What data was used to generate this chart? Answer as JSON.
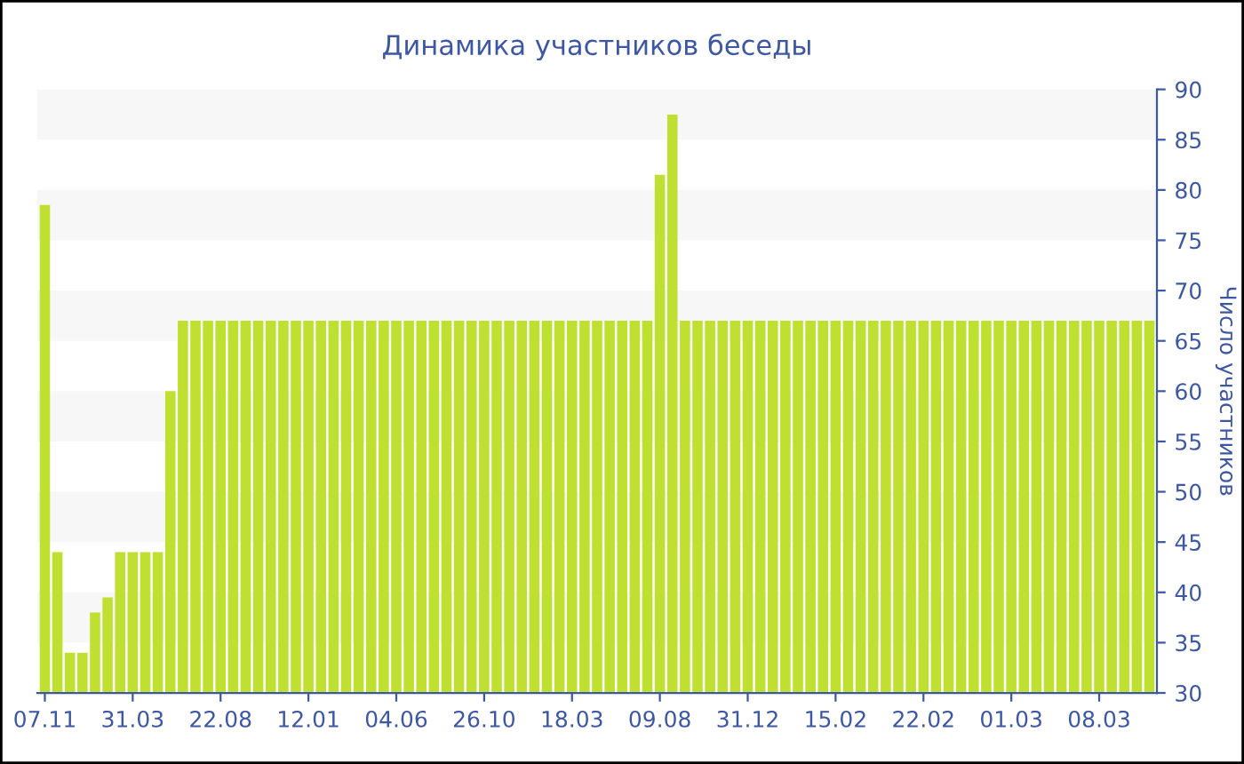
{
  "chart_data": {
    "type": "bar",
    "title": "Динамика участников беседы",
    "ylabel": "Число участников",
    "categories": [
      "07.11",
      null,
      null,
      null,
      null,
      null,
      null,
      "31.03",
      null,
      null,
      null,
      null,
      null,
      null,
      "22.08",
      null,
      null,
      null,
      null,
      null,
      null,
      "12.01",
      null,
      null,
      null,
      null,
      null,
      null,
      "04.06",
      null,
      null,
      null,
      null,
      null,
      null,
      "26.10",
      null,
      null,
      null,
      null,
      null,
      null,
      "18.03",
      null,
      null,
      null,
      null,
      null,
      null,
      "09.08",
      null,
      null,
      null,
      null,
      null,
      null,
      "31.12",
      null,
      null,
      null,
      null,
      null,
      null,
      "15.02",
      null,
      null,
      null,
      null,
      null,
      null,
      "22.02",
      null,
      null,
      null,
      null,
      null,
      null,
      "01.03",
      null,
      null,
      null,
      null,
      null,
      null,
      "08.03",
      null,
      null,
      null,
      null
    ],
    "values": [
      78.5,
      44,
      34,
      34,
      38,
      39.5,
      44,
      44,
      44,
      44,
      60,
      67,
      67,
      67,
      67,
      67,
      67,
      67,
      67,
      67,
      67,
      67,
      67,
      67,
      67,
      67,
      67,
      67,
      67,
      67,
      67,
      67,
      67,
      67,
      67,
      67,
      67,
      67,
      67,
      67,
      67,
      67,
      67,
      67,
      67,
      67,
      67,
      67,
      67,
      81.5,
      87.5,
      67,
      67,
      67,
      67,
      67,
      67,
      67,
      67,
      67,
      67,
      67,
      67,
      67,
      67,
      67,
      67,
      67,
      67,
      67,
      67,
      67,
      67,
      67,
      67,
      67,
      67,
      67,
      67,
      67,
      67,
      67,
      67,
      67,
      67,
      67,
      67,
      67,
      67
    ],
    "color": "#bfe030",
    "ylim": [
      30,
      90
    ],
    "yticks": [
      30,
      35,
      40,
      45,
      50,
      55,
      60,
      65,
      70,
      75,
      80,
      85,
      90
    ],
    "grid": false,
    "bands": [
      {
        "axis": "y",
        "from": 35,
        "to": 40,
        "color": "#f7f7f7"
      },
      {
        "axis": "y",
        "from": 45,
        "to": 50,
        "color": "#f7f7f7"
      },
      {
        "axis": "y",
        "from": 55,
        "to": 60,
        "color": "#f7f7f7"
      },
      {
        "axis": "y",
        "from": 65,
        "to": 70,
        "color": "#f7f7f7"
      },
      {
        "axis": "y",
        "from": 75,
        "to": 80,
        "color": "#f7f7f7"
      },
      {
        "axis": "y",
        "from": 85,
        "to": 90,
        "color": "#f7f7f7"
      }
    ]
  }
}
